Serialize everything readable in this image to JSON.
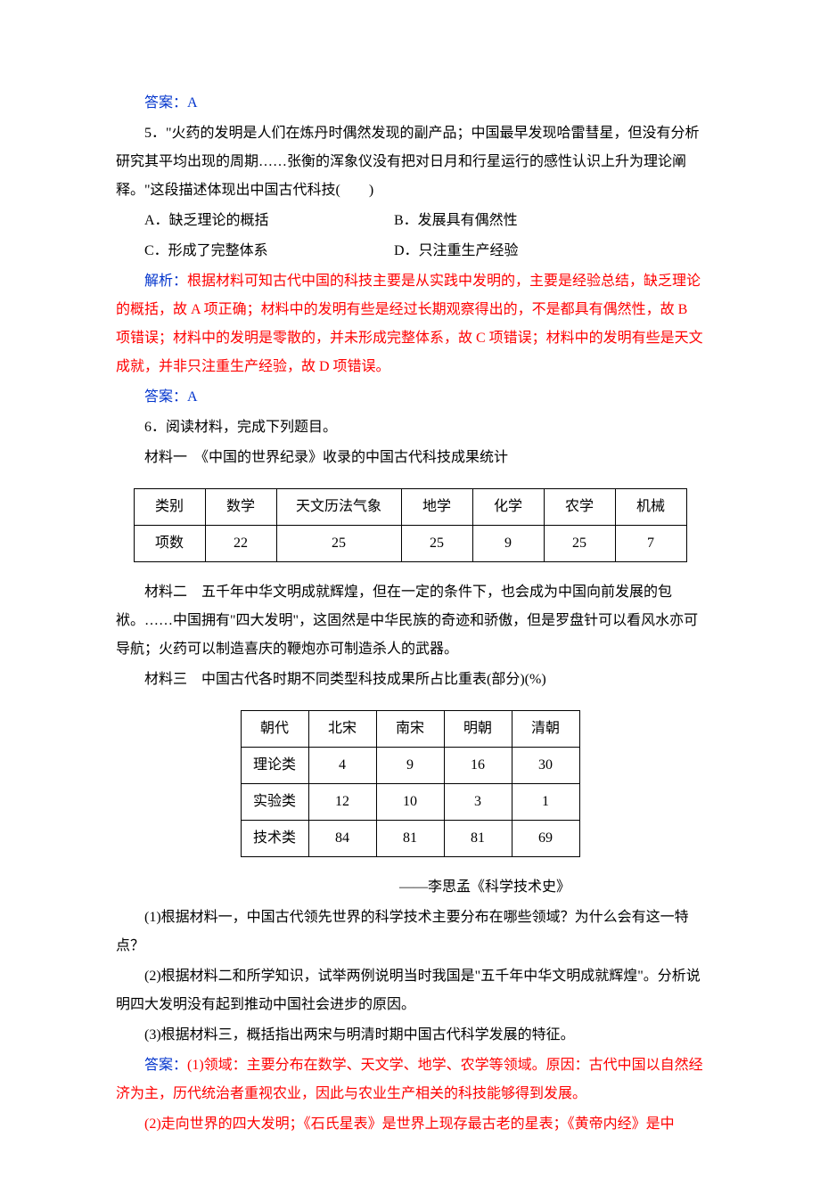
{
  "ans4": "答案：A",
  "q5": {
    "stem": "5．\"火药的发明是人们在炼丹时偶然发现的副产品；中国最早发现哈雷彗星，但没有分析研究其平均出现的周期……张衡的浑象仪没有把对日月和行星运行的感性认识上升为理论阐释。\"这段描述体现出中国古代科技(　　)",
    "optA": "A．缺乏理论的概括",
    "optB": "B．发展具有偶然性",
    "optC": "C．形成了完整体系",
    "optD": "D．只注重生产经验",
    "analysis_label": "解析：",
    "analysis": "根据材料可知古代中国的科技主要是从实践中发明的，主要是经验总结，缺乏理论的概括，故 A 项正确；材料中的发明有些是经过长期观察得出的，不是都具有偶然性，故 B 项错误；材料中的发明是零散的，并未形成完整体系，故 C 项错误；材料中的发明有些是天文成就，并非只注重生产经验，故 D 项错误。",
    "answer": "答案：A"
  },
  "q6": {
    "stem": "6．阅读材料，完成下列题目。",
    "m1_title": "材料一　《中国的世界纪录》收录的中国古代科技成果统计",
    "table1": {
      "headers": [
        "类别",
        "数学",
        "天文历法气象",
        "地学",
        "化学",
        "农学",
        "机械"
      ],
      "row": [
        "项数",
        "22",
        "25",
        "25",
        "9",
        "25",
        "7"
      ]
    },
    "m2": "材料二　五千年中华文明成就辉煌，但在一定的条件下，也会成为中国向前发展的包袱。……中国拥有\"四大发明\"，这固然是中华民族的奇迹和骄傲，但是罗盘针可以看风水亦可导航；火药可以制造喜庆的鞭炮亦可制造杀人的武器。",
    "m3_title": "材料三　中国古代各时期不同类型科技成果所占比重表(部分)(%)",
    "table2": {
      "headers": [
        "朝代",
        "北宋",
        "南宋",
        "明朝",
        "清朝"
      ],
      "rows": [
        [
          "理论类",
          "4",
          "9",
          "16",
          "30"
        ],
        [
          "实验类",
          "12",
          "10",
          "3",
          "1"
        ],
        [
          "技术类",
          "84",
          "81",
          "81",
          "69"
        ]
      ]
    },
    "source": "——李思孟《科学技术史》",
    "sub1": "(1)根据材料一，中国古代领先世界的科学技术主要分布在哪些领域？为什么会有这一特点？",
    "sub2": "(2)根据材料二和所学知识，试举两例说明当时我国是\"五千年中华文明成就辉煌\"。分析说明四大发明没有起到推动中国社会进步的原因。",
    "sub3": "(3)根据材料三，概括指出两宋与明清时期中国古代科学发展的特征。",
    "ans_label": "答案：",
    "ans1": "(1)领域：主要分布在数学、天文学、地学、农学等领域。原因：古代中国以自然经济为主，历代统治者重视农业，因此与农业生产相关的科技能够得到发展。",
    "ans2": "(2)走向世界的四大发明；《石氏星表》是世界上现存最古老的星表；《黄帝内经》是中"
  },
  "colors": {
    "text": "#000000",
    "blue": "#0033cc",
    "red": "#ff0000",
    "background": "#ffffff",
    "table_border": "#000000"
  },
  "typography": {
    "font_family": "SimSun",
    "base_fontsize": 16,
    "line_height": 2.0
  }
}
